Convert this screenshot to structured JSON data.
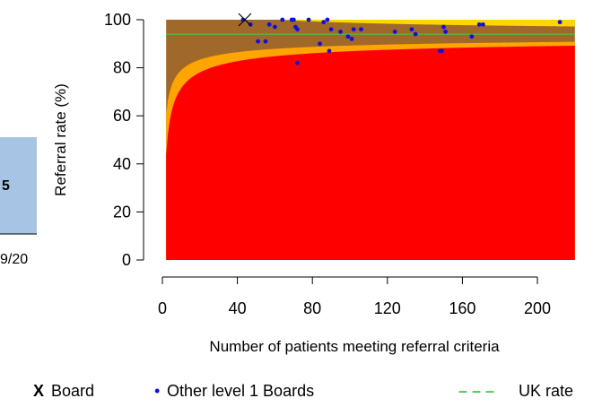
{
  "chart_data": {
    "type": "scatter",
    "title": "",
    "xlabel": "Number of patients meeting referral criteria",
    "ylabel": "Referral rate (%)",
    "xlim": [
      0,
      220
    ],
    "ylim": [
      0,
      100
    ],
    "x_ticks": [
      "0",
      "40",
      "80",
      "120",
      "160",
      "200"
    ],
    "y_ticks": [
      "0",
      "20",
      "40",
      "60",
      "80",
      "100"
    ],
    "uk_rate": 94,
    "board_point": {
      "x": 44,
      "y": 100
    },
    "series": [
      {
        "name": "Other level 1 Boards",
        "color": "#1010dd",
        "points": [
          {
            "x": 43,
            "y": 100
          },
          {
            "x": 47,
            "y": 98
          },
          {
            "x": 51,
            "y": 91
          },
          {
            "x": 55,
            "y": 91
          },
          {
            "x": 57,
            "y": 98
          },
          {
            "x": 60,
            "y": 97
          },
          {
            "x": 64,
            "y": 100
          },
          {
            "x": 69,
            "y": 100
          },
          {
            "x": 70,
            "y": 100
          },
          {
            "x": 71,
            "y": 97
          },
          {
            "x": 72,
            "y": 96
          },
          {
            "x": 72,
            "y": 82
          },
          {
            "x": 78,
            "y": 100
          },
          {
            "x": 84,
            "y": 90
          },
          {
            "x": 86,
            "y": 99
          },
          {
            "x": 88,
            "y": 100
          },
          {
            "x": 89,
            "y": 87
          },
          {
            "x": 90,
            "y": 96
          },
          {
            "x": 95,
            "y": 95
          },
          {
            "x": 99,
            "y": 93
          },
          {
            "x": 101,
            "y": 92
          },
          {
            "x": 102,
            "y": 96
          },
          {
            "x": 106,
            "y": 96
          },
          {
            "x": 124,
            "y": 95
          },
          {
            "x": 133,
            "y": 96
          },
          {
            "x": 135,
            "y": 94
          },
          {
            "x": 148,
            "y": 87
          },
          {
            "x": 149,
            "y": 87
          },
          {
            "x": 150,
            "y": 97
          },
          {
            "x": 151,
            "y": 95
          },
          {
            "x": 165,
            "y": 93
          },
          {
            "x": 169,
            "y": 98
          },
          {
            "x": 171,
            "y": 98
          },
          {
            "x": 212,
            "y": 99
          }
        ]
      }
    ],
    "funnel_bands": [
      {
        "name": "inner",
        "color": "#ff0000",
        "z": 3.0
      },
      {
        "name": "middle",
        "color": "#ffa500",
        "z": 2.0
      },
      {
        "name": "outer",
        "color": "#a0692a"
      },
      {
        "name": "top",
        "color": "#ffd700"
      }
    ],
    "legend": [
      {
        "marker": "X",
        "label": "Board",
        "marker_color": "#000000"
      },
      {
        "marker": "•",
        "label": "Other level 1 Boards",
        "marker_color": "#1010dd"
      },
      {
        "marker": "– – –",
        "label": "UK rate",
        "marker_color": "#44cc44"
      }
    ],
    "legend_position": "bottom",
    "left_fragment": {
      "value": "5",
      "date": "9/20",
      "color": "#a8c4e4"
    }
  }
}
